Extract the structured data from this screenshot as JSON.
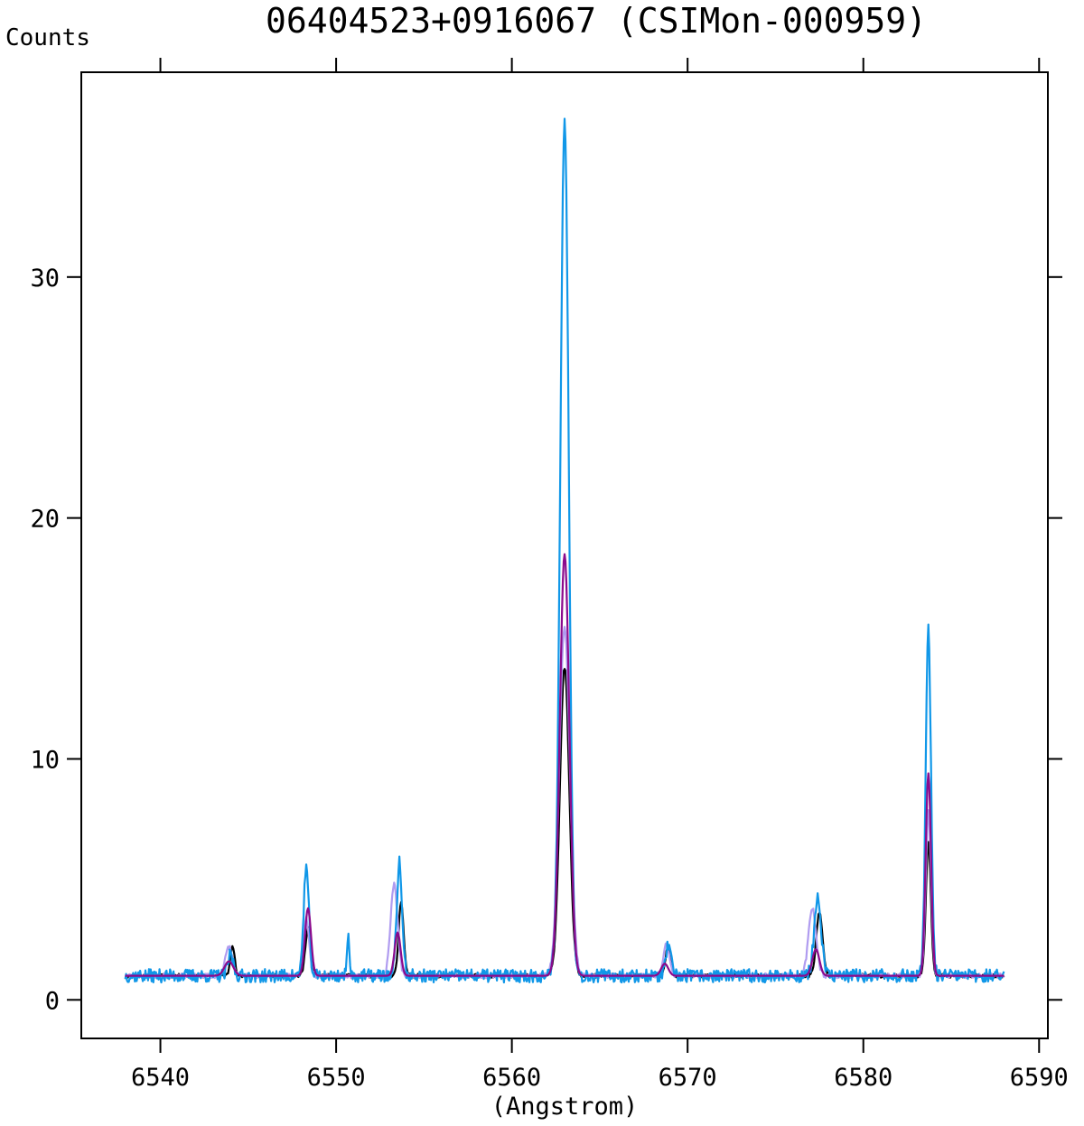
{
  "chart_data": {
    "type": "line",
    "title": "06404523+0916067 (CSIMon-000959)",
    "ylabel": "Counts",
    "xlabel": "(Angstrom)",
    "xlim": [
      6535.5,
      6590.5
    ],
    "ylim": [
      -1.6,
      38.5
    ],
    "x_ticks": [
      6540,
      6550,
      6560,
      6570,
      6580,
      6590
    ],
    "y_ticks": [
      0,
      10,
      20,
      30
    ],
    "grid": false,
    "x_start": 6538,
    "x_end": 6588,
    "baseline": 1.0,
    "series": [
      {
        "color": "#000000",
        "noise": 0.08,
        "seed": 11,
        "peaks": [
          [
            6544.1,
            1.3,
            0.12
          ],
          [
            6548.4,
            2.0,
            0.15
          ],
          [
            6553.7,
            3.1,
            0.14
          ],
          [
            6563.0,
            12.8,
            0.27
          ],
          [
            6568.9,
            1.2,
            0.15
          ],
          [
            6577.5,
            2.6,
            0.18
          ],
          [
            6583.7,
            5.6,
            0.14
          ]
        ]
      },
      {
        "color": "#b09cf0",
        "noise": 0.1,
        "seed": 23,
        "peaks": [
          [
            6543.9,
            1.2,
            0.2
          ],
          [
            6548.3,
            2.4,
            0.17
          ],
          [
            6553.3,
            3.8,
            0.2
          ],
          [
            6563.0,
            14.5,
            0.3
          ],
          [
            6568.8,
            1.3,
            0.18
          ],
          [
            6577.1,
            2.8,
            0.22
          ],
          [
            6583.7,
            6.8,
            0.15
          ]
        ]
      },
      {
        "color": "#1097e8",
        "noise": 0.28,
        "seed": 37,
        "peaks": [
          [
            6544.0,
            0.9,
            0.15
          ],
          [
            6548.3,
            4.5,
            0.15
          ],
          [
            6550.7,
            1.7,
            0.07
          ],
          [
            6553.6,
            4.7,
            0.15
          ],
          [
            6563.0,
            35.5,
            0.24
          ],
          [
            6568.9,
            1.2,
            0.15
          ],
          [
            6577.4,
            3.2,
            0.2
          ],
          [
            6583.7,
            14.3,
            0.15
          ]
        ]
      },
      {
        "color": "#8c0a8c",
        "noise": 0.0,
        "seed": 5,
        "peaks": [
          [
            6543.9,
            0.6,
            0.25
          ],
          [
            6548.4,
            2.8,
            0.17
          ],
          [
            6553.5,
            1.8,
            0.17
          ],
          [
            6563.0,
            17.5,
            0.27
          ],
          [
            6568.7,
            0.5,
            0.2
          ],
          [
            6577.3,
            1.1,
            0.2
          ],
          [
            6583.7,
            8.4,
            0.15
          ]
        ]
      }
    ]
  }
}
